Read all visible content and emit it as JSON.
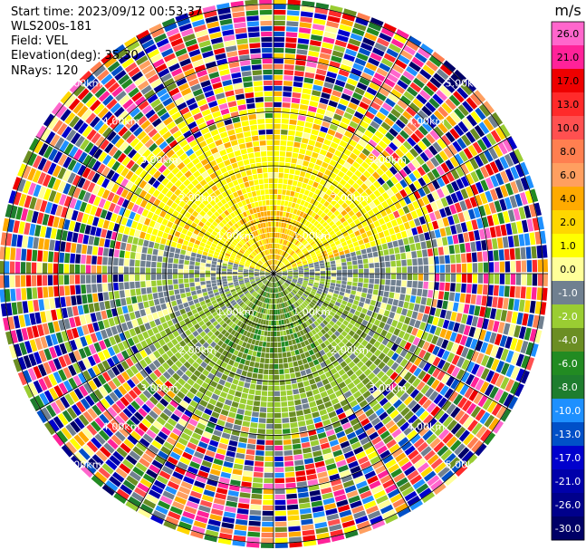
{
  "header": {
    "start_time": "Start time: 2023/09/12 00:53:37",
    "instrument": "WLS200s-181",
    "field": "Field: VEL",
    "elevation": "Elevation(deg): 35.30",
    "nrays": "NRays: 120"
  },
  "chart_data": {
    "type": "heatmap",
    "projection": "polar-ppi",
    "rays": 120,
    "range_rings_km": [
      1,
      2,
      3,
      4,
      5
    ],
    "ring_labels": [
      "1.00km",
      "2.00km",
      "3.00km",
      "4.00km",
      "5.00km"
    ],
    "colorbar": {
      "unit": "m/s",
      "range": [
        -30,
        30
      ],
      "ticks": [
        "26.0",
        "21.0",
        "17.0",
        "13.0",
        "10.0",
        "8.0",
        "6.0",
        "4.0",
        "2.0",
        "1.0",
        "0.0",
        "-1.0",
        "-2.0",
        "-4.0",
        "-6.0",
        "-8.0",
        "-10.0",
        "-13.0",
        "-17.0",
        "-21.0",
        "-26.0",
        "-30.0"
      ],
      "colors": [
        "#ff66cc",
        "#ff2299",
        "#ee0000",
        "#ff2a2a",
        "#ff5050",
        "#ff7f50",
        "#ff9f60",
        "#ffaa00",
        "#ffd700",
        "#ffff00",
        "#ffff99",
        "#708090",
        "#9acd32",
        "#6b8e23",
        "#228b22",
        "#1e7d2e",
        "#1e90ff",
        "#0050c8",
        "#0000cd",
        "#0000aa",
        "#00008b",
        "#000066"
      ]
    }
  }
}
